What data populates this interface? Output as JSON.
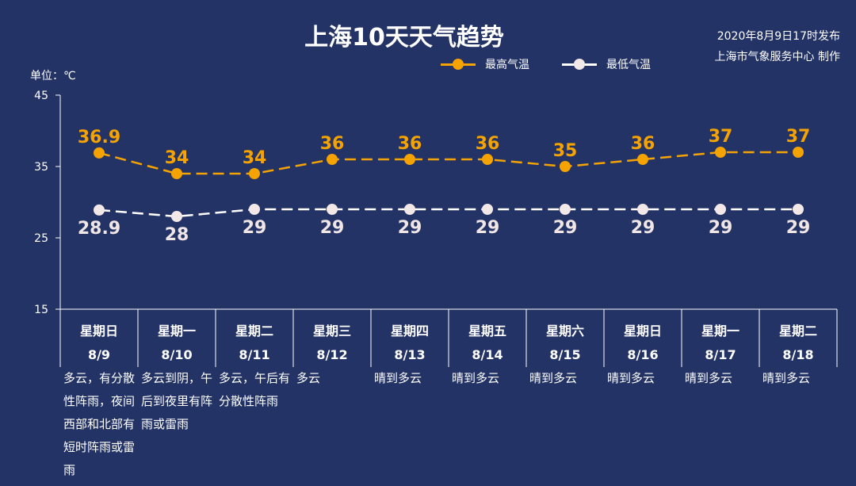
{
  "header": {
    "title": "上海10天天气趋势",
    "issue_date": "2020年8月9日17时发布",
    "issuer": "上海市气象服务中心 制作",
    "unit_label": "单位：℃"
  },
  "legend": {
    "high_label": "最高气温",
    "low_label": "最低气温"
  },
  "colors": {
    "background": "#233366",
    "high": "#F5A300",
    "low": "#FFFFFF",
    "axis": "#FFFFFF"
  },
  "forecast": [
    {
      "weekday": "星期日",
      "date": "8/9",
      "weather": "多云，有分散性阵雨，夜间西部和北部有短时阵雨或雷雨"
    },
    {
      "weekday": "星期一",
      "date": "8/10",
      "weather": "多云到阴，午后到夜里有阵雨或雷雨"
    },
    {
      "weekday": "星期二",
      "date": "8/11",
      "weather": "多云，午后有分散性阵雨"
    },
    {
      "weekday": "星期三",
      "date": "8/12",
      "weather": "多云"
    },
    {
      "weekday": "星期四",
      "date": "8/13",
      "weather": "晴到多云"
    },
    {
      "weekday": "星期五",
      "date": "8/14",
      "weather": "晴到多云"
    },
    {
      "weekday": "星期六",
      "date": "8/15",
      "weather": "晴到多云"
    },
    {
      "weekday": "星期日",
      "date": "8/16",
      "weather": "晴到多云"
    },
    {
      "weekday": "星期一",
      "date": "8/17",
      "weather": "晴到多云"
    },
    {
      "weekday": "星期二",
      "date": "8/18",
      "weather": "晴到多云"
    }
  ],
  "chart_data": {
    "type": "line",
    "title": "上海10天天气趋势",
    "ylabel": "单位：℃",
    "ylim": [
      15,
      45
    ],
    "yticks": [
      15,
      25,
      35,
      45
    ],
    "grid": false,
    "legend_position": "top-right",
    "categories": [
      "8/9",
      "8/10",
      "8/11",
      "8/12",
      "8/13",
      "8/14",
      "8/15",
      "8/16",
      "8/17",
      "8/18"
    ],
    "series": [
      {
        "name": "最高气温",
        "values": [
          36.9,
          34,
          34,
          36,
          36,
          36,
          35,
          36,
          37,
          37
        ],
        "labels": [
          "36.9",
          "34",
          "34",
          "36",
          "36",
          "36",
          "35",
          "36",
          "37",
          "37"
        ],
        "color": "#F5A300",
        "line_style": "dashed",
        "label_position": "above"
      },
      {
        "name": "最低气温",
        "values": [
          28.9,
          28,
          29,
          29,
          29,
          29,
          29,
          29,
          29,
          29
        ],
        "labels": [
          "28.9",
          "28",
          "29",
          "29",
          "29",
          "29",
          "29",
          "29",
          "29",
          "29"
        ],
        "color": "#FFFFFF",
        "line_style": "dashed",
        "label_position": "below"
      }
    ]
  }
}
